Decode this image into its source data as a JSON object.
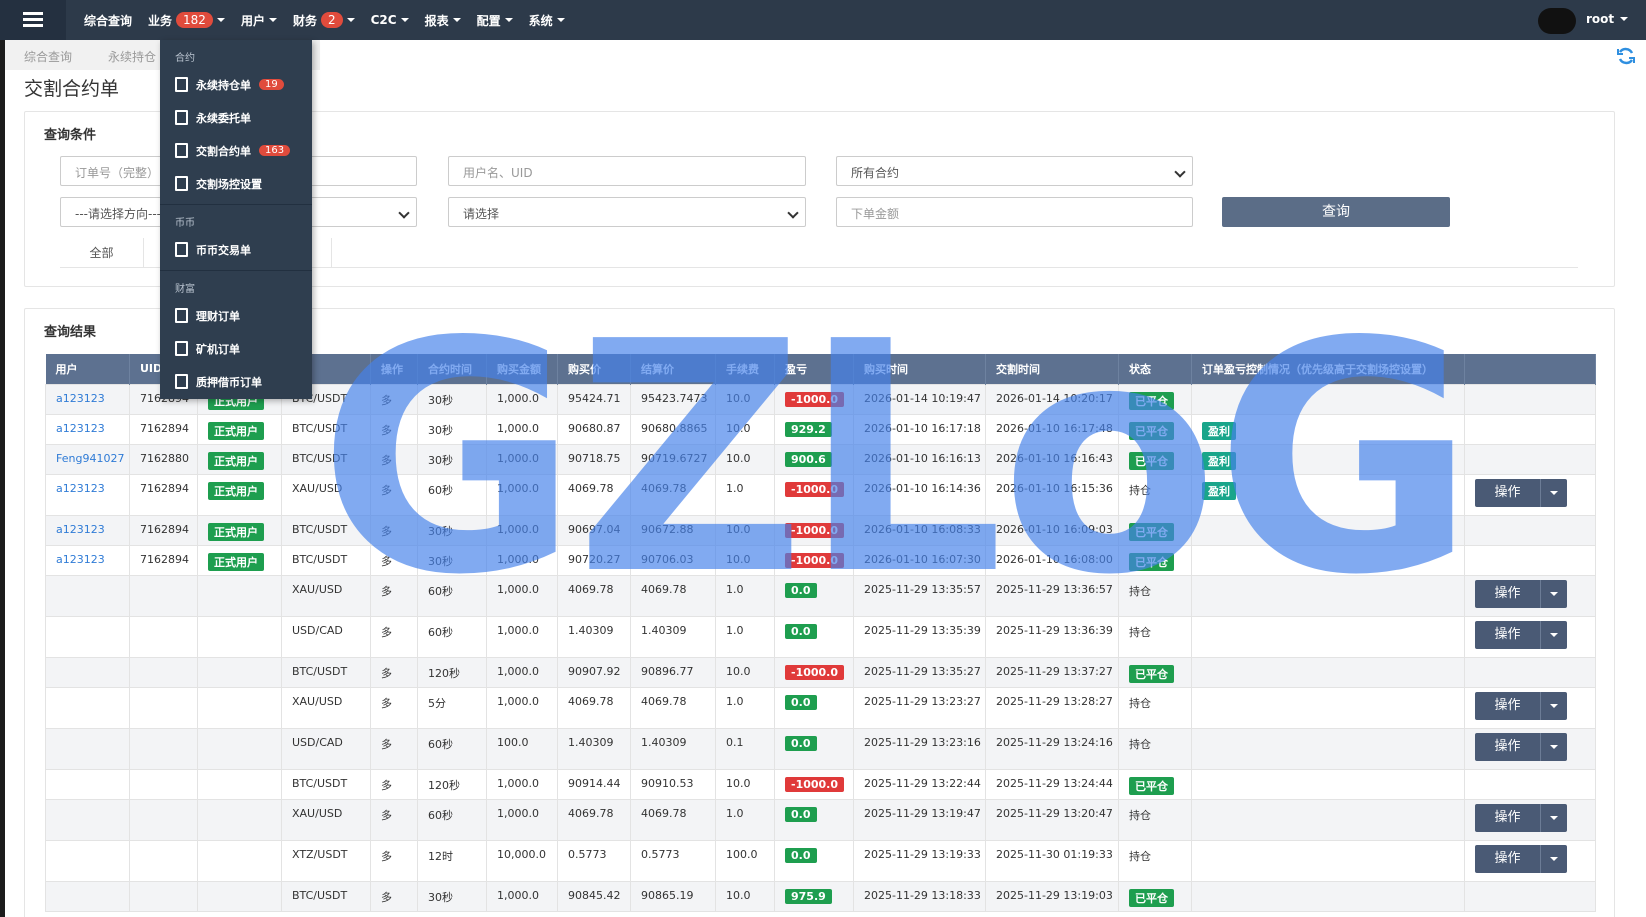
{
  "nav": {
    "items": [
      {
        "label": "综合查询"
      },
      {
        "label": "业务",
        "badge": 182
      },
      {
        "label": "用户"
      },
      {
        "label": "财务",
        "badge": 2
      },
      {
        "label": "C2C"
      },
      {
        "label": "报表"
      },
      {
        "label": "配置"
      },
      {
        "label": "系统"
      }
    ],
    "user": "root"
  },
  "tabs": [
    "综合查询",
    "永续持仓"
  ],
  "title": "交割合约单",
  "query": {
    "title": "查询条件",
    "fields": [
      {
        "text": "订单号（完整）",
        "kind": "input"
      },
      {
        "text": "用户名、UID",
        "kind": "input"
      },
      {
        "text": "所有合约",
        "kind": "select"
      },
      {
        "text": "---请选择方向---",
        "kind": "select"
      },
      {
        "text": "请选择",
        "kind": "select"
      },
      {
        "text": "下单金额",
        "kind": "input"
      }
    ],
    "button": "查询",
    "filters": [
      "全部"
    ]
  },
  "menu": [
    {
      "section": "合约",
      "items": [
        {
          "label": "永续持仓单",
          "badge": 19
        },
        {
          "label": "永续委托单"
        },
        {
          "label": "交割合约单",
          "badge": 163
        },
        {
          "label": "交割场控设置"
        }
      ]
    },
    {
      "section": "币币",
      "items": [
        {
          "label": "币币交易单"
        }
      ]
    },
    {
      "section": "财富",
      "items": [
        {
          "label": "理财订单"
        },
        {
          "label": "矿机订单"
        },
        {
          "label": "质押借币订单"
        }
      ]
    }
  ],
  "results": {
    "title": "查询结果",
    "headers": [
      "用户",
      "UID",
      null,
      null,
      "操作",
      "合约时间",
      "购买金额",
      "购买价",
      "结算价",
      "手续费",
      "盈亏",
      "购买时间",
      "交割时间",
      "状态",
      "订单盈亏控制情况（优先级高于交割场控设置）",
      null
    ],
    "rows": [
      [
        "a123123",
        "7162894",
        "正式用户",
        "BTC/USDT",
        "多",
        "30秒",
        "1,000.0",
        "95424.71",
        "95423.7473",
        "10.0",
        "-1000.0",
        "2026-01-14 10:19:47",
        "2026-01-14 10:20:17",
        "已平仓",
        null,
        null
      ],
      [
        "a123123",
        "7162894",
        "正式用户",
        "BTC/USDT",
        "多",
        "30秒",
        "1,000.0",
        "90680.87",
        "90680.8865",
        "10.0",
        "929.2",
        "2026-01-10 16:17:18",
        "2026-01-10 16:17:48",
        "已平仓",
        "盈利",
        null
      ],
      [
        "Feng941027",
        "7162880",
        "正式用户",
        "BTC/USDT",
        "多",
        "30秒",
        "1,000.0",
        "90718.75",
        "90719.6727",
        "10.0",
        "900.6",
        "2026-01-10 16:16:13",
        "2026-01-10 16:16:43",
        "已平仓",
        "盈利",
        null
      ],
      [
        "a123123",
        "7162894",
        "正式用户",
        "XAU/USD",
        "多",
        "60秒",
        "1,000.0",
        "4069.78",
        "4069.78",
        "1.0",
        "-1000.0",
        "2026-01-10 16:14:36",
        "2026-01-10 16:15:36",
        "持仓",
        "盈利",
        "操作"
      ],
      [
        "a123123",
        "7162894",
        "正式用户",
        "BTC/USDT",
        "多",
        "30秒",
        "1,000.0",
        "90697.04",
        "90672.88",
        "10.0",
        "-1000.0",
        "2026-01-10 16:08:33",
        "2026-01-10 16:09:03",
        "已平仓",
        null,
        null
      ],
      [
        "a123123",
        "7162894",
        "正式用户",
        "BTC/USDT",
        "多",
        "30秒",
        "1,000.0",
        "90720.27",
        "90706.03",
        "10.0",
        "-1000.0",
        "2026-01-10 16:07:30",
        "2026-01-10 16:08:00",
        "已平仓",
        null,
        null
      ],
      [
        null,
        null,
        null,
        "XAU/USD",
        "多",
        "60秒",
        "1,000.0",
        "4069.78",
        "4069.78",
        "1.0",
        "0.0",
        "2025-11-29 13:35:57",
        "2025-11-29 13:36:57",
        "持仓",
        null,
        "操作"
      ],
      [
        null,
        null,
        null,
        "USD/CAD",
        "多",
        "60秒",
        "1,000.0",
        "1.40309",
        "1.40309",
        "1.0",
        "0.0",
        "2025-11-29 13:35:39",
        "2025-11-29 13:36:39",
        "持仓",
        null,
        "操作"
      ],
      [
        null,
        null,
        null,
        "BTC/USDT",
        "多",
        "120秒",
        "1,000.0",
        "90907.92",
        "90896.77",
        "10.0",
        "-1000.0",
        "2025-11-29 13:35:27",
        "2025-11-29 13:37:27",
        "已平仓",
        null,
        null
      ],
      [
        null,
        null,
        null,
        "XAU/USD",
        "多",
        "5分",
        "1,000.0",
        "4069.78",
        "4069.78",
        "1.0",
        "0.0",
        "2025-11-29 13:23:27",
        "2025-11-29 13:28:27",
        "持仓",
        null,
        "操作"
      ],
      [
        null,
        null,
        null,
        "USD/CAD",
        "多",
        "60秒",
        "100.0",
        "1.40309",
        "1.40309",
        "0.1",
        "0.0",
        "2025-11-29 13:23:16",
        "2025-11-29 13:24:16",
        "持仓",
        null,
        "操作"
      ],
      [
        null,
        null,
        null,
        "BTC/USDT",
        "多",
        "120秒",
        "1,000.0",
        "90914.44",
        "90910.53",
        "10.0",
        "-1000.0",
        "2025-11-29 13:22:44",
        "2025-11-29 13:24:44",
        "已平仓",
        null,
        null
      ],
      [
        null,
        null,
        null,
        "XAU/USD",
        "多",
        "60秒",
        "1,000.0",
        "4069.78",
        "4069.78",
        "1.0",
        "0.0",
        "2025-11-29 13:19:47",
        "2025-11-29 13:20:47",
        "持仓",
        null,
        "操作"
      ],
      [
        null,
        null,
        null,
        "XTZ/USDT",
        "多",
        "12时",
        "10,000.0",
        "0.5773",
        "0.5773",
        "100.0",
        "0.0",
        "2025-11-29 13:19:33",
        "2025-11-30 01:19:33",
        "持仓",
        null,
        "操作"
      ],
      [
        null,
        null,
        null,
        "BTC/USDT",
        "多",
        "30秒",
        "1,000.0",
        "90845.42",
        "90865.19",
        "10.0",
        "975.9",
        "2025-11-29 13:18:33",
        "2025-11-29 13:19:03",
        "已平仓",
        null,
        null
      ]
    ]
  },
  "watermark": "GZLoG"
}
